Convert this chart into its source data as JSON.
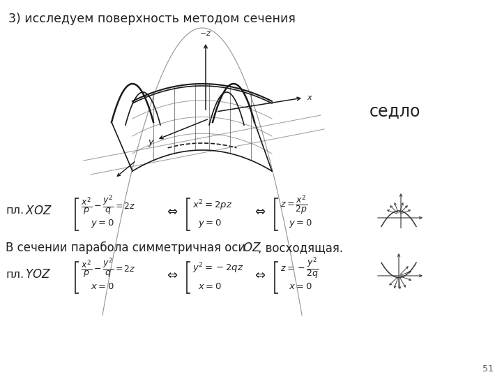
{
  "title": "3) исследуем поверхность методом сечения",
  "sedlo_text": "седло",
  "text_line1": "В сечении парабола симметричная оси ",
  "text_OZ": "OZ",
  "text_line1_end": ", восходящая.",
  "page_num": "51",
  "bg_color": "#ffffff",
  "text_color": "#1a1a1a",
  "fig_width": 7.2,
  "fig_height": 5.4,
  "dpi": 100
}
